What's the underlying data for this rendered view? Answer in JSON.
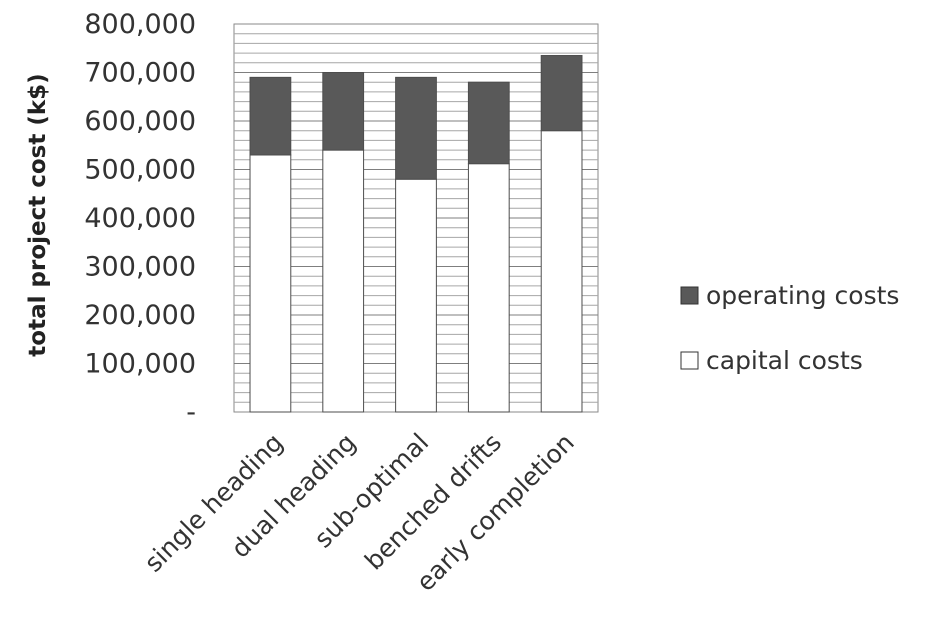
{
  "chart_data": {
    "type": "bar",
    "stacked": true,
    "categories": [
      "single heading",
      "dual heading",
      "sub-optimal",
      "benched drifts",
      "early completion"
    ],
    "series": [
      {
        "name": "capital costs",
        "values": [
          530000,
          540000,
          480000,
          512000,
          580000
        ],
        "color": "#ffffff"
      },
      {
        "name": "operating costs",
        "values": [
          160000,
          160000,
          210000,
          168000,
          155000
        ],
        "color": "#595959"
      }
    ],
    "ylabel": "total project cost (k$)",
    "ylim": [
      0,
      800000
    ],
    "yticks": [
      0,
      100000,
      200000,
      300000,
      400000,
      500000,
      600000,
      700000,
      800000
    ],
    "ytick_labels": [
      "-",
      "100,000",
      "200,000",
      "300,000",
      "400,000",
      "500,000",
      "600,000",
      "700,000",
      "800,000"
    ],
    "grid": true,
    "minor_grid_step": 20000,
    "legend": {
      "position": "right",
      "entries": [
        "operating costs",
        "capital costs"
      ]
    }
  }
}
